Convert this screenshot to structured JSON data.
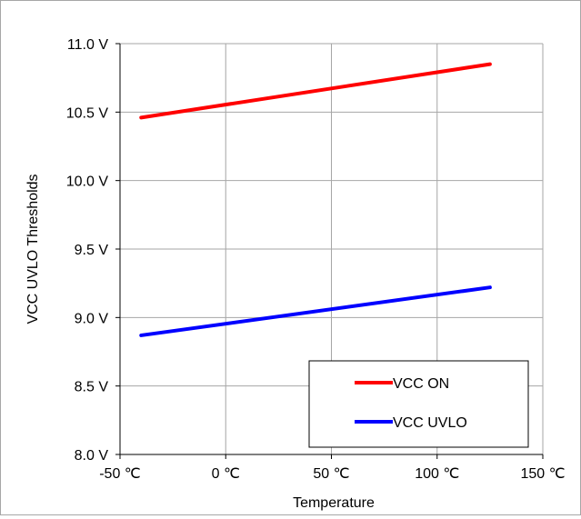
{
  "chart_data": {
    "type": "line",
    "title": "",
    "xlabel": "Temperature",
    "ylabel": "VCC UVLO Thresholds",
    "xlim": [
      -50,
      150
    ],
    "ylim": [
      8.0,
      11.0
    ],
    "x_ticks": [
      -50,
      0,
      50,
      100,
      150
    ],
    "x_tick_labels": [
      "-50 ℃",
      "0 ℃",
      "50 ℃",
      "100 ℃",
      "150 ℃"
    ],
    "y_ticks": [
      8.0,
      8.5,
      9.0,
      9.5,
      10.0,
      10.5,
      11.0
    ],
    "y_tick_labels": [
      "8.0 V",
      "8.5 V",
      "9.0 V",
      "9.5 V",
      "10.0 V",
      "10.5 V",
      "11.0 V"
    ],
    "grid": true,
    "legend_position": "bottom-right",
    "series": [
      {
        "name": "VCC ON",
        "color": "#ff0000",
        "x": [
          -40,
          125
        ],
        "y": [
          10.46,
          10.85
        ]
      },
      {
        "name": "VCC UVLO",
        "color": "#0000ff",
        "x": [
          -40,
          125
        ],
        "y": [
          8.87,
          9.22
        ]
      }
    ]
  }
}
